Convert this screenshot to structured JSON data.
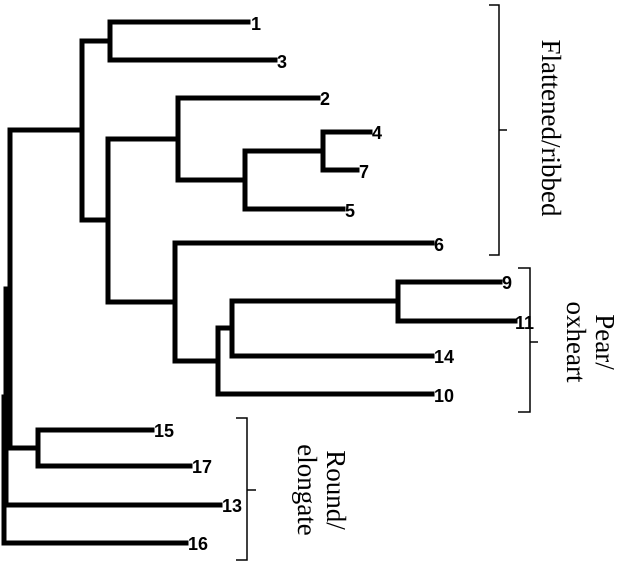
{
  "leaves": [
    "1",
    "3",
    "2",
    "4",
    "7",
    "5",
    "6",
    "9",
    "11",
    "14",
    "10",
    "15",
    "17",
    "13",
    "16"
  ],
  "groups": [
    {
      "lines": [
        "Flattened/ribbed"
      ]
    },
    {
      "lines": [
        "Pear/",
        "oxheart"
      ]
    },
    {
      "lines": [
        "Round/",
        "elongate"
      ]
    }
  ]
}
